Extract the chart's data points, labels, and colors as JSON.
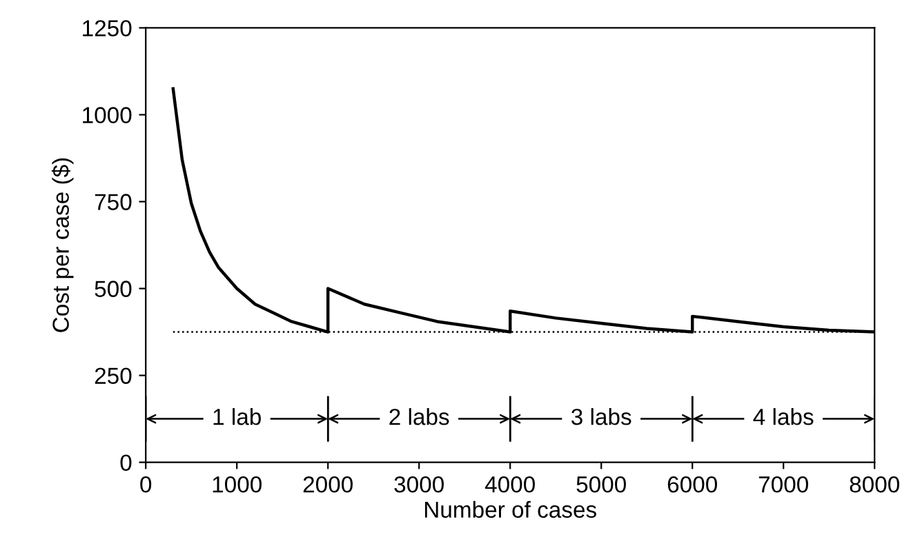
{
  "chart_data": {
    "type": "line",
    "xlabel": "Number of cases",
    "ylabel": "Cost per case ($)",
    "x": [
      300,
      400,
      500,
      600,
      700,
      800,
      1000,
      1200,
      1400,
      1600,
      1800,
      2000,
      2000,
      2400,
      2800,
      3200,
      3600,
      4000,
      4000,
      4500,
      5000,
      5500,
      6000,
      6000,
      6500,
      7000,
      7500,
      8000
    ],
    "series": [
      {
        "color": "#000000",
        "values": [
          1075,
          870,
          745,
          665,
          605,
          560,
          500,
          455,
          430,
          405,
          390,
          375,
          500,
          455,
          430,
          405,
          390,
          375,
          435,
          415,
          400,
          385,
          375,
          420,
          405,
          390,
          380,
          375
        ]
      }
    ],
    "xlim": [
      0,
      8000
    ],
    "xticks": [
      0,
      1000,
      2000,
      3000,
      4000,
      5000,
      6000,
      7000,
      8000
    ],
    "ylim": [
      0,
      1250
    ],
    "yticks": [
      0,
      250,
      500,
      750,
      1000,
      1250
    ],
    "ref_lines": [
      {
        "axis": "y",
        "value": 375,
        "label": null,
        "color": "#000000",
        "line_style": "dotted"
      }
    ],
    "annotations": [
      "1 lab",
      "2 labs",
      "3 labs",
      "4 labs"
    ],
    "grid": false,
    "legend": false,
    "marker": "none",
    "line_style": "solid"
  }
}
